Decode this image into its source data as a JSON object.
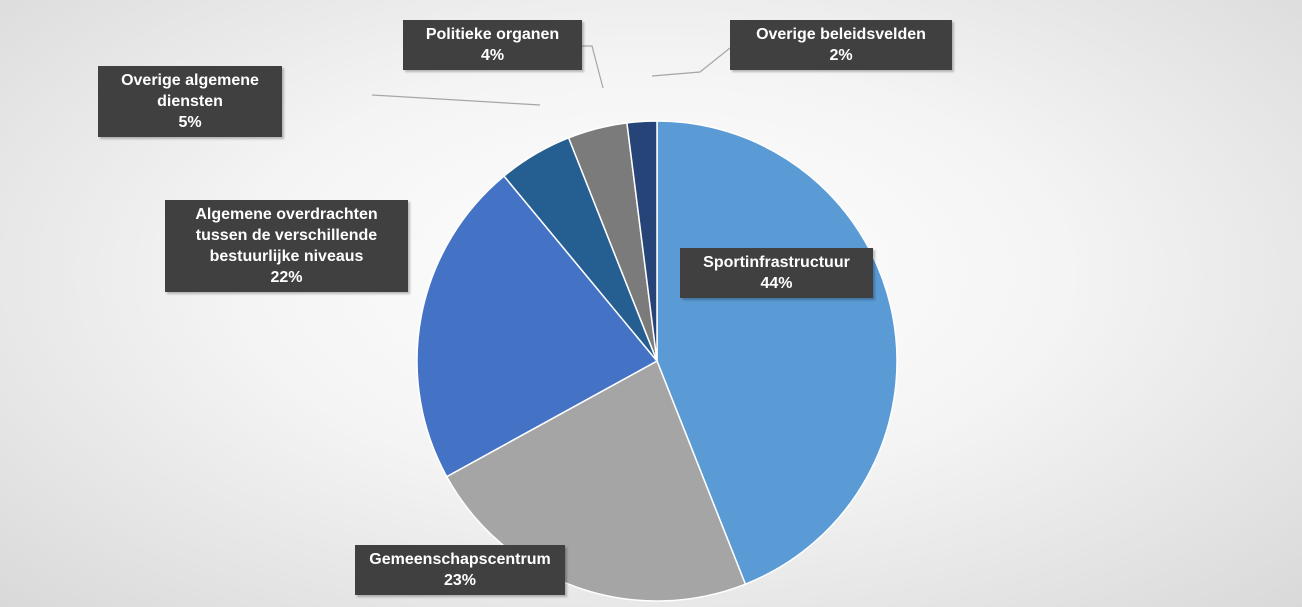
{
  "chart_data": {
    "type": "pie",
    "categories": [
      "Sportinfrastructuur",
      "Gemeenschapscentrum",
      "Algemene overdrachten tussen de verschillende bestuurlijke niveaus",
      "Overige algemene diensten",
      "Politieke organen",
      "Overige beleidsvelden"
    ],
    "values": [
      44,
      23,
      22,
      5,
      4,
      2
    ],
    "value_labels": [
      "44%",
      "23%",
      "22%",
      "5%",
      "4%",
      "2%"
    ],
    "colors": [
      "#5b9bd5",
      "#a5a5a5",
      "#4472c4",
      "#255e91",
      "#7b7b7b",
      "#264478"
    ]
  }
}
